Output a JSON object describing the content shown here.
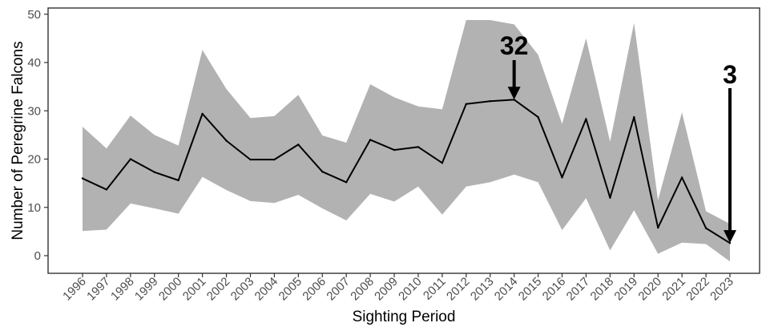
{
  "chart_data": {
    "type": "line",
    "title": "",
    "xlabel": "Sighting Period",
    "ylabel": "Number of Peregrine Falcons",
    "x": [
      "1996",
      "1997",
      "1998",
      "1999",
      "2000",
      "2001",
      "2002",
      "2003",
      "2004",
      "2005",
      "2006",
      "2007",
      "2008",
      "2009",
      "2010",
      "2011",
      "2012",
      "2013",
      "2014",
      "2015",
      "2016",
      "2017",
      "2018",
      "2019",
      "2020",
      "2021",
      "2022",
      "2023"
    ],
    "ylim": [
      -3,
      51
    ],
    "yticks": [
      0,
      10,
      20,
      30,
      40,
      50
    ],
    "ytick_labels": [
      "0",
      "10",
      "20",
      "30",
      "40",
      "50"
    ],
    "grid": false,
    "legend": "none",
    "series": [
      {
        "values": [
          16,
          13.7,
          20,
          17.3,
          15.6,
          29.4,
          23.8,
          19.9,
          19.9,
          23,
          17.4,
          15.2,
          24,
          21.9,
          22.5,
          19.2,
          31.4,
          32,
          32.3,
          28.7,
          16.2,
          28.3,
          12,
          28.7,
          5.8,
          16.2,
          5.7,
          2.6
        ],
        "color": "#000000"
      }
    ],
    "band": {
      "lower": [
        5.1,
        5.4,
        10.8,
        9.8,
        8.7,
        16.3,
        13.6,
        11.3,
        10.9,
        12.6,
        9.8,
        7.3,
        12.8,
        11.2,
        14.3,
        8.5,
        14.3,
        15.2,
        16.8,
        15.2,
        5.3,
        11.9,
        1.1,
        9.4,
        0.4,
        2.7,
        2.4,
        -1.2
      ],
      "upper": [
        26.7,
        22.2,
        29,
        25,
        22.8,
        42.6,
        34.5,
        28.5,
        28.9,
        33.3,
        24.9,
        23.4,
        35.5,
        32.8,
        30.9,
        30.3,
        48.8,
        48.8,
        47.9,
        41.6,
        27.3,
        45,
        23.6,
        48.2,
        11.5,
        29.7,
        9.2,
        6.6
      ],
      "color": "#b2b2b2"
    },
    "annotations": [
      {
        "text": "32",
        "x": "2014",
        "y": 32.3
      },
      {
        "text": "3",
        "x": "2023",
        "y": 2.6
      }
    ]
  },
  "colors": {
    "line": "#000000",
    "band": "#b2b2b2",
    "background": "#ffffff",
    "tick_text": "#4d4d4d"
  }
}
